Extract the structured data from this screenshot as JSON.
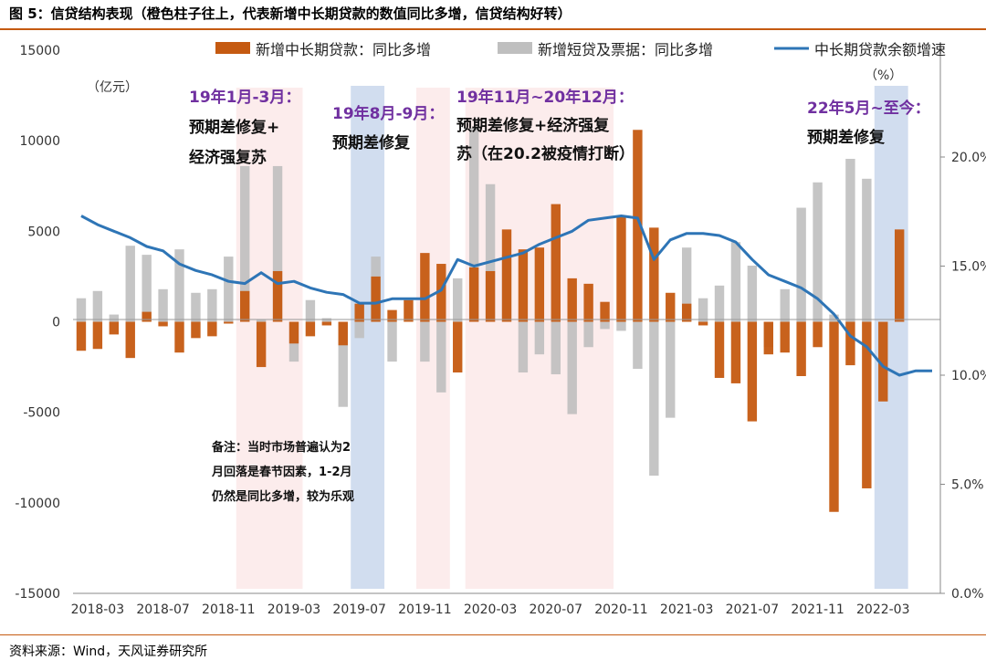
{
  "title": "图 5：信贷结构表现（橙色柱子往上，代表新增中长期贷款的数值同比多增，信贷结构好转）",
  "source": "资料来源：Wind，天风证券研究所",
  "colors": {
    "long_term": "#c55a11",
    "short_term": "#bfbfbf",
    "growth_line": "#2e75b6",
    "pink_band": "#fbe5e5",
    "blue_band": "#c9d7ec",
    "rule": "#c55a11",
    "annotation_purple": "#7030a0"
  },
  "chart_data": {
    "type": "bar",
    "x_tick_labels": [
      "2018-03",
      "2018-07",
      "2018-11",
      "2019-03",
      "2019-07",
      "2019-11",
      "2020-03",
      "2020-07",
      "2020-11",
      "2021-03",
      "2021-07",
      "2021-11",
      "2022-03"
    ],
    "y_left": {
      "unit": "（亿元）",
      "ylim": [
        -15000,
        15000
      ],
      "ticks": [
        "15000",
        "10000",
        "5000",
        "0",
        "-5000",
        "-10000",
        "-15000"
      ]
    },
    "y_right": {
      "unit": "（%）",
      "ylim": [
        0,
        20.0
      ],
      "ticks": [
        "20.0%",
        "15.0%",
        "10.0%",
        "5.0%",
        "0.0%"
      ]
    },
    "legend": [
      {
        "label": "新增中长期贷款：同比多增",
        "marker": "bar",
        "color": "#c55a11"
      },
      {
        "label": "新增短贷及票据：同比多增",
        "marker": "bar",
        "color": "#bfbfbf"
      },
      {
        "label": "中长期贷款余额增速",
        "marker": "line",
        "color": "#2e75b6"
      }
    ],
    "x": [
      "2018-02",
      "2018-03",
      "2018-04",
      "2018-05",
      "2018-06",
      "2018-07",
      "2018-08",
      "2018-09",
      "2018-10",
      "2018-11",
      "2018-12",
      "2019-01",
      "2019-02",
      "2019-03",
      "2019-04",
      "2019-05",
      "2019-06",
      "2019-07",
      "2019-08",
      "2019-09",
      "2019-10",
      "2019-11",
      "2019-12",
      "2020-01",
      "2020-02",
      "2020-03",
      "2020-04",
      "2020-05",
      "2020-06",
      "2020-07",
      "2020-08",
      "2020-09",
      "2020-10",
      "2020-11",
      "2020-12",
      "2021-01",
      "2021-02",
      "2021-03",
      "2021-04",
      "2021-05",
      "2021-06",
      "2021-07",
      "2021-08",
      "2021-09",
      "2021-10",
      "2021-11",
      "2021-12",
      "2022-01",
      "2022-02",
      "2022-03",
      "2022-04",
      "2022-05",
      "2022-06"
    ],
    "series": [
      {
        "name": "新增中长期贷款：同比多增",
        "axis": "left",
        "values": [
          -1600,
          -1500,
          -700,
          -2000,
          550,
          -250,
          -1700,
          -900,
          -800,
          -100,
          1700,
          -2500,
          2800,
          -1200,
          -800,
          -200,
          -1300,
          1000,
          2500,
          650,
          1200,
          3800,
          3200,
          -2800,
          3000,
          2800,
          5100,
          4000,
          4100,
          6500,
          2400,
          2100,
          1100,
          5800,
          10600,
          5200,
          1600,
          1000,
          -200,
          -3100,
          -3400,
          -5500,
          -1800,
          -1700,
          -3000,
          -1400,
          -10500,
          -2400,
          -9200,
          -4400,
          5100,
          0,
          0
        ]
      },
      {
        "name": "新增短贷及票据：同比多增",
        "axis": "left",
        "values": [
          1300,
          1700,
          400,
          4200,
          3700,
          1800,
          4000,
          1600,
          1800,
          3600,
          8600,
          100,
          8600,
          -2200,
          1200,
          200,
          -4700,
          -900,
          3600,
          -2200,
          0,
          -2200,
          -3900,
          2400,
          10700,
          7600,
          3700,
          -2800,
          -1800,
          -2900,
          -5100,
          -1400,
          -400,
          -500,
          -2600,
          -8500,
          -5300,
          4100,
          1300,
          2000,
          4400,
          3100,
          -1400,
          1800,
          6300,
          7700,
          400,
          9000,
          7900,
          0,
          0,
          0,
          0
        ]
      },
      {
        "name": "中长期贷款余额增速",
        "axis": "right",
        "values": [
          17.3,
          16.9,
          16.6,
          16.3,
          15.9,
          15.7,
          15.1,
          14.8,
          14.6,
          14.3,
          14.2,
          14.7,
          14.2,
          14.3,
          14.0,
          13.8,
          13.7,
          13.3,
          13.3,
          13.5,
          13.5,
          13.5,
          13.9,
          15.3,
          15.0,
          15.2,
          15.4,
          15.6,
          16.0,
          16.3,
          16.6,
          17.1,
          17.2,
          17.3,
          17.2,
          15.3,
          16.2,
          16.5,
          16.5,
          16.4,
          16.1,
          15.3,
          14.6,
          14.3,
          14.0,
          13.5,
          12.8,
          11.8,
          11.3,
          10.4,
          10.0,
          10.2,
          10.2
        ]
      }
    ],
    "shaded_periods": [
      {
        "start": "2018-12",
        "end": "2019-03",
        "color": "pink",
        "label": [
          "19年1月-3月：",
          "预期差修复+",
          "经济强复苏"
        ]
      },
      {
        "start": "2019-07",
        "end": "2019-08",
        "color": "blue",
        "label": [
          "19年8月-9月：",
          "预期差修复"
        ]
      },
      {
        "start": "2019-11",
        "end": "2019-12",
        "color": "pink",
        "label": []
      },
      {
        "start": "2020-02",
        "end": "2020-10",
        "color": "pink",
        "label": [
          "19年11月~20年12月：",
          "预期差修复+经济强复",
          "苏（在20.2被疫情打断）"
        ]
      },
      {
        "start": "2022-03",
        "end": "2022-04",
        "color": "blue",
        "label": [
          "22年5月~至今：",
          "预期差修复"
        ]
      }
    ],
    "note": [
      "备注：当时市场普遍认为2",
      "月回落是春节因素，1-2月",
      "仍然是同比多增，较为乐观"
    ]
  }
}
